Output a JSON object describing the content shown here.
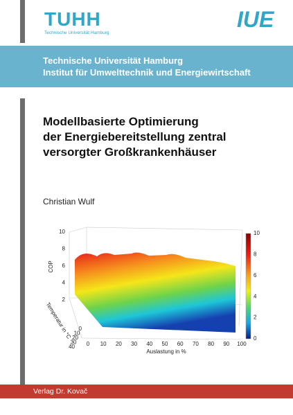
{
  "header": {
    "logo_left": "TUHH",
    "logo_left_sub": "Technische Universität Hamburg",
    "logo_right": "IUE"
  },
  "banner": {
    "lines": [
      "Technische Universität Hamburg",
      "Institut für Umwelttechnik und Energiewirtschaft"
    ]
  },
  "title": {
    "lines": [
      "Modellbasierte Optimierung",
      "der Energiebereitstellung zentral",
      "versorgter Großkrankenhäuser"
    ]
  },
  "author": "Christian Wulf",
  "figure": {
    "z_axis_label": "COP",
    "z_ticks": [
      10,
      8,
      6,
      4,
      2
    ],
    "y_axis_label": "Temperatur in °C",
    "y_ticks": [
      0,
      10,
      20,
      30,
      40
    ],
    "x_axis_label": "Auslastung in %",
    "x_ticks": [
      0,
      10,
      20,
      30,
      40,
      50,
      60,
      70,
      80,
      90,
      100
    ],
    "colorbar_ticks": [
      10,
      8,
      6,
      4,
      2,
      0
    ]
  },
  "publisher": "Verlag Dr. Kovač"
}
